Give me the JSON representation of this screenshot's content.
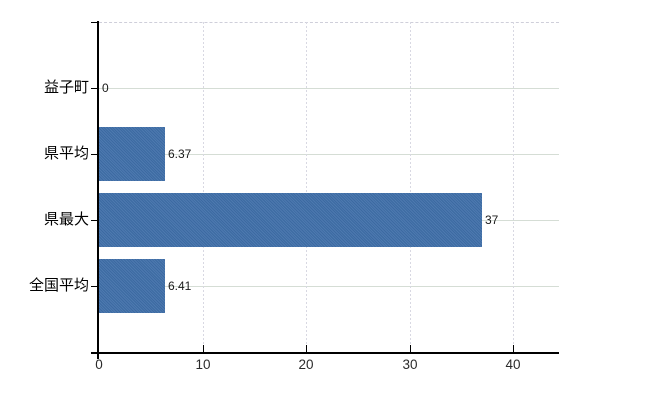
{
  "chart_data": {
    "type": "bar",
    "orientation": "horizontal",
    "title": "",
    "categories": [
      "益子町",
      "県平均",
      "県最大",
      "全国平均"
    ],
    "values": [
      0,
      6.37,
      37,
      6.41
    ],
    "value_labels": [
      "0",
      "6.37",
      "37",
      "6.41"
    ],
    "x_ticks": [
      0,
      10,
      20,
      30,
      40
    ],
    "x_tick_labels": [
      "0",
      "10",
      "20",
      "30",
      "40"
    ],
    "xlim": [
      0,
      44.4
    ],
    "grid": "on",
    "legend": "none",
    "colors": {
      "bar": "#3e6ea8",
      "h_gridline": "#d5ddd5",
      "v_gridline": "#d8d8e2",
      "axis": "#000000",
      "category_label": "#000000",
      "tick_label": "#2b2b2b",
      "value_label": "#1a1a1a",
      "background": "#ffffff"
    }
  }
}
